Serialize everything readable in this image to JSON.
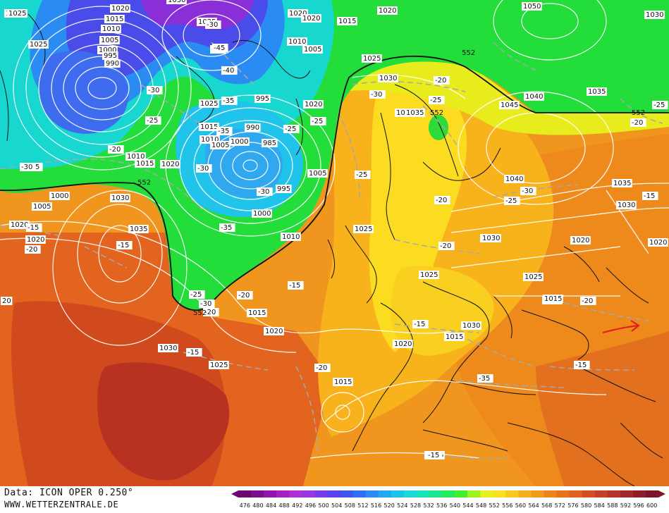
{
  "footer": {
    "source_line": "Data: ICON OPER 0.250°",
    "site_line": "WWW.WETTERZENTRALE.DE"
  },
  "colorbar": {
    "ticks": [
      "476",
      "480",
      "484",
      "488",
      "492",
      "496",
      "500",
      "504",
      "508",
      "512",
      "516",
      "520",
      "524",
      "528",
      "532",
      "536",
      "540",
      "544",
      "548",
      "552",
      "556",
      "560",
      "564",
      "568",
      "572",
      "576",
      "580",
      "584",
      "588",
      "592",
      "596",
      "600"
    ],
    "colors": [
      "#6a0a6e",
      "#7d0f8c",
      "#9214a8",
      "#a81fc2",
      "#b02fd6",
      "#9a35e0",
      "#7a3ae6",
      "#5a43ea",
      "#3f55ec",
      "#2f6ef0",
      "#2a8cf2",
      "#21a9f0",
      "#1ec3ea",
      "#18d8d8",
      "#16e3b6",
      "#19e88c",
      "#25ea5a",
      "#45ee2a",
      "#9ef21e",
      "#e8f01c",
      "#fbe020",
      "#fac81e",
      "#f6b01c",
      "#f29a1c",
      "#ee851c",
      "#e8721c",
      "#e0601e",
      "#d44f20",
      "#c54024",
      "#b53328",
      "#a32a2a",
      "#8e1f2a",
      "#7a1628"
    ]
  },
  "map": {
    "geopotential_contour_label": "552",
    "pressure_labels": [
      "1020",
      "1015",
      "1010",
      "1005",
      "1000",
      "995",
      "990",
      "1025",
      "1020",
      "1030",
      "1025",
      "1020",
      "1020",
      "1020",
      "1015",
      "1010",
      "1005",
      "1025",
      "1030",
      "1035",
      "1035",
      "1050",
      "1030",
      "1045",
      "1040",
      "1035",
      "1040",
      "1035",
      "1030",
      "1025",
      "1020",
      "1015",
      "1020",
      "1025",
      "1030",
      "1015",
      "1010",
      "1005",
      "1000",
      "995",
      "985",
      "990",
      "995",
      "1000",
      "1005",
      "1010",
      "1015",
      "1020",
      "1025",
      "1030",
      "1035",
      "1030",
      "1020",
      "1015",
      "1000",
      "1005",
      "1010",
      "1015",
      "1020",
      "1025",
      "1030",
      "1015",
      "1020",
      "1015",
      "1015",
      "1020",
      "1025",
      "1030",
      "1015",
      "1020",
      "20",
      "1025"
    ],
    "temperature_labels": [
      "-30",
      "-35",
      "-45",
      "-40",
      "-35",
      "-30",
      "-25",
      "-20",
      "-25",
      "-30",
      "-35",
      "-30",
      "-25",
      "-25",
      "-30",
      "-35",
      "-30",
      "-25",
      "-20",
      "-25",
      "-20",
      "-15",
      "-20",
      "-25",
      "-30",
      "-20",
      "-15",
      "-20",
      "-35",
      "-30",
      "-25",
      "-20",
      "-15",
      "-20",
      "-15",
      "-15",
      "-25",
      "-20",
      "-15",
      "-15",
      "-20",
      "-15"
    ],
    "annotation": "red-arrow"
  }
}
